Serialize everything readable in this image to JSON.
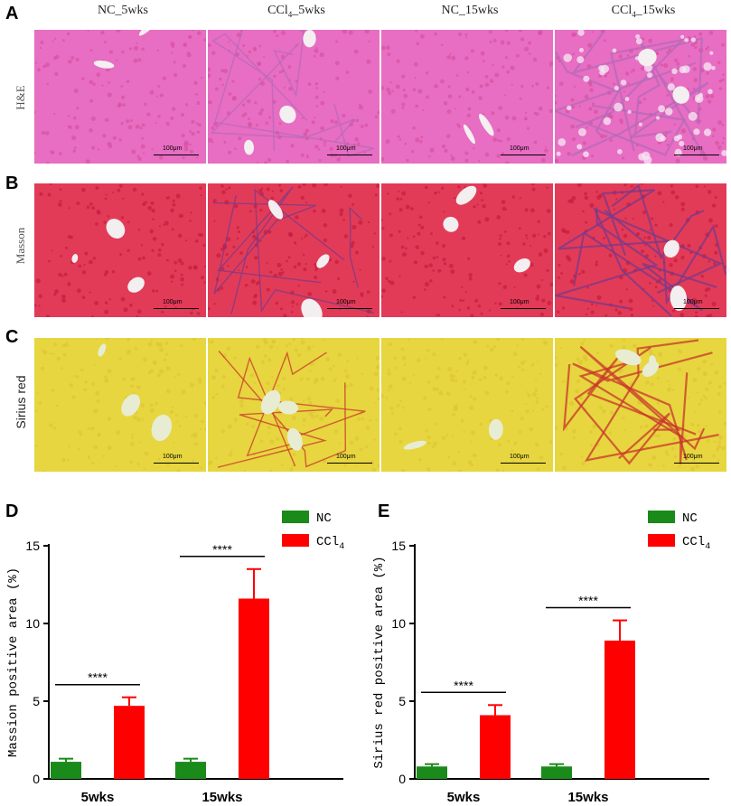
{
  "figure": {
    "panel_labels": [
      "A",
      "B",
      "C",
      "D",
      "E"
    ],
    "columns": [
      "NC_5wks",
      "CCl4_5wks",
      "NC_15wks",
      "CCl4_15wks"
    ],
    "rows": [
      {
        "label": "H&E",
        "scale": "100μm",
        "colors": {
          "bg": "#e76ec2",
          "cell": "#d8509f",
          "vessel": "#f4eff0"
        }
      },
      {
        "label": "Masson",
        "scale": "100μm",
        "colors": {
          "bg": "#e23b58",
          "cell": "#c81d3c",
          "vessel": "#f3eef0"
        }
      },
      {
        "label": "Sirius red",
        "scale": "100μm",
        "colors": {
          "bg": "#e7d63f",
          "cell": "#dec536",
          "vessel": "#e7ecd2"
        }
      }
    ]
  },
  "chart_data": [
    {
      "type": "bar",
      "categories": [
        "5wks",
        "15wks"
      ],
      "series": [
        {
          "name": "NC",
          "values": [
            1.1,
            1.1
          ],
          "errors": [
            0.2,
            0.2
          ],
          "color": "#1a8a1a"
        },
        {
          "name": "CCl4",
          "values": [
            4.7,
            11.6
          ],
          "errors": [
            0.55,
            1.9
          ],
          "color": "#ff0000"
        }
      ],
      "significance": [
        "****",
        "****"
      ],
      "ylabel": "Massion positive area (%)",
      "ylim": [
        0,
        15
      ],
      "yticks": [
        0,
        5,
        10,
        15
      ],
      "legend": "top-right"
    },
    {
      "type": "bar",
      "categories": [
        "5wks",
        "15wks"
      ],
      "series": [
        {
          "name": "NC",
          "values": [
            0.8,
            0.8
          ],
          "errors": [
            0.15,
            0.15
          ],
          "color": "#1a8a1a"
        },
        {
          "name": "CCl4",
          "values": [
            4.1,
            8.9
          ],
          "errors": [
            0.65,
            1.3
          ],
          "color": "#ff0000"
        }
      ],
      "significance": [
        "****",
        "****"
      ],
      "ylabel": "Sirius red positive area (%)",
      "ylim": [
        0,
        15
      ],
      "yticks": [
        0,
        5,
        10,
        15
      ],
      "legend": "top-right"
    }
  ]
}
